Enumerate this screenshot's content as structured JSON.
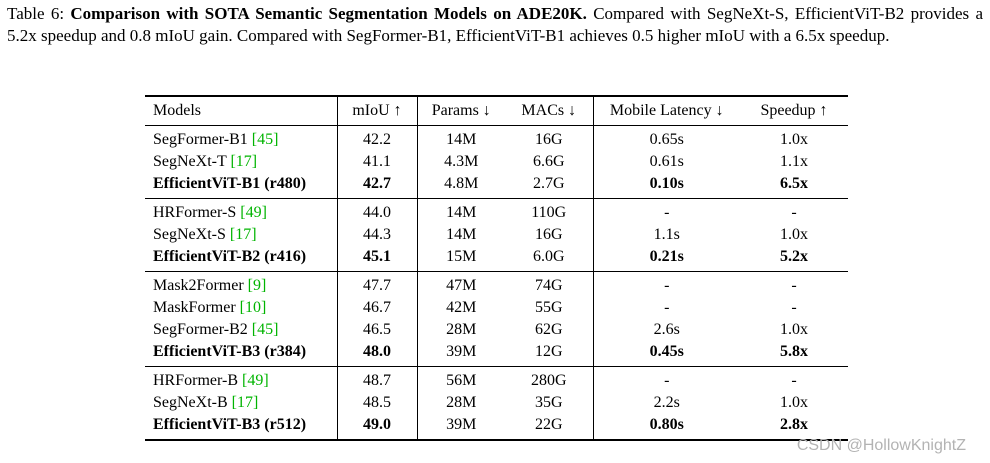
{
  "caption": {
    "label": "Table 6: ",
    "title_bold": "Comparison with SOTA Semantic Segmentation Models on ADE20K.",
    "body": " Compared with SegNeXt-S, EfficientViT-B2 provides a 5.2x speedup and 0.8 mIoU gain. Compared with SegFormer-B1, EfficientViT-B1 achieves 0.5 higher mIoU with a 6.5x speedup."
  },
  "table": {
    "headers": [
      "Models",
      "mIoU ↑",
      "Params ↓",
      "MACs ↓",
      "Mobile Latency ↓",
      "Speedup ↑"
    ],
    "groups": [
      {
        "rows": [
          {
            "model": "SegFormer-B1",
            "cite": "[45]",
            "miou": "42.2",
            "params": "14M",
            "macs": "16G",
            "latency": "0.65s",
            "speedup": "1.0x",
            "highlight": false
          },
          {
            "model": "SegNeXt-T",
            "cite": "[17]",
            "miou": "41.1",
            "params": "4.3M",
            "macs": "6.6G",
            "latency": "0.61s",
            "speedup": "1.1x",
            "highlight": false
          },
          {
            "model": "EfficientViT-B1 (r480)",
            "cite": "",
            "miou": "42.7",
            "params": "4.8M",
            "macs": "2.7G",
            "latency": "0.10s",
            "speedup": "6.5x",
            "highlight": true
          }
        ]
      },
      {
        "rows": [
          {
            "model": "HRFormer-S",
            "cite": "[49]",
            "miou": "44.0",
            "params": "14M",
            "macs": "110G",
            "latency": "-",
            "speedup": "-",
            "highlight": false
          },
          {
            "model": "SegNeXt-S",
            "cite": "[17]",
            "miou": "44.3",
            "params": "14M",
            "macs": "16G",
            "latency": "1.1s",
            "speedup": "1.0x",
            "highlight": false
          },
          {
            "model": "EfficientViT-B2 (r416)",
            "cite": "",
            "miou": "45.1",
            "params": "15M",
            "macs": "6.0G",
            "latency": "0.21s",
            "speedup": "5.2x",
            "highlight": true
          }
        ]
      },
      {
        "rows": [
          {
            "model": "Mask2Former",
            "cite": "[9]",
            "miou": "47.7",
            "params": "47M",
            "macs": "74G",
            "latency": "-",
            "speedup": "-",
            "highlight": false
          },
          {
            "model": "MaskFormer",
            "cite": "[10]",
            "miou": "46.7",
            "params": "42M",
            "macs": "55G",
            "latency": "-",
            "speedup": "-",
            "highlight": false
          },
          {
            "model": "SegFormer-B2",
            "cite": "[45]",
            "miou": "46.5",
            "params": "28M",
            "macs": "62G",
            "latency": "2.6s",
            "speedup": "1.0x",
            "highlight": false
          },
          {
            "model": "EfficientViT-B3 (r384)",
            "cite": "",
            "miou": "48.0",
            "params": "39M",
            "macs": "12G",
            "latency": "0.45s",
            "speedup": "5.8x",
            "highlight": true
          }
        ]
      },
      {
        "rows": [
          {
            "model": "HRFormer-B",
            "cite": "[49]",
            "miou": "48.7",
            "params": "56M",
            "macs": "280G",
            "latency": "-",
            "speedup": "-",
            "highlight": false
          },
          {
            "model": "SegNeXt-B",
            "cite": "[17]",
            "miou": "48.5",
            "params": "28M",
            "macs": "35G",
            "latency": "2.2s",
            "speedup": "1.0x",
            "highlight": false
          },
          {
            "model": "EfficientViT-B3 (r512)",
            "cite": "",
            "miou": "49.0",
            "params": "39M",
            "macs": "22G",
            "latency": "0.80s",
            "speedup": "2.8x",
            "highlight": true
          }
        ]
      }
    ]
  },
  "watermark": "CSDN @HollowKnightZ",
  "colors": {
    "citation_green": "#00b400",
    "watermark_gray": "#b3b3b3"
  }
}
